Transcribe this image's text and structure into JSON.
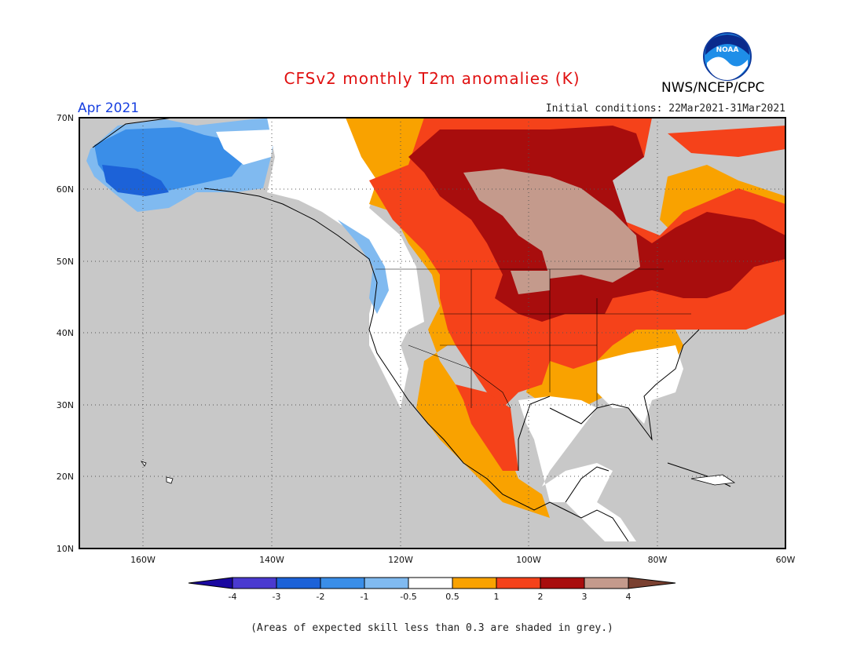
{
  "title": "CFSv2 monthly T2m anomalies (K)",
  "agency": "NWS/NCEP/CPC",
  "logo_text": "NOAA",
  "valid_period": "Apr 2021",
  "initial_conditions": "Initial conditions: 22Mar2021-31Mar2021",
  "footnote": "(Areas of expected skill less than 0.3 are shaded in grey.)",
  "map": {
    "lon_range": [
      -170,
      -60
    ],
    "lat_range": [
      10,
      70
    ],
    "lat_labels": [
      "70N",
      "60N",
      "50N",
      "40N",
      "30N",
      "20N",
      "10N"
    ],
    "lon_labels": [
      "160W",
      "140W",
      "120W",
      "100W",
      "80W",
      "60W"
    ],
    "gridlines": "dotted",
    "low_skill_color": "#c8c8c8"
  },
  "legend": {
    "tick_labels": [
      "-4",
      "-3",
      "-2",
      "-1",
      "-0.5",
      "0.5",
      "1",
      "2",
      "3",
      "4"
    ],
    "bins": [
      {
        "color": "#1a08a0"
      },
      {
        "color": "#4a3ad0"
      },
      {
        "color": "#1c62d8"
      },
      {
        "color": "#3a8ee8"
      },
      {
        "color": "#80baf0"
      },
      {
        "color": "#ffffff"
      },
      {
        "color": "#f9a200"
      },
      {
        "color": "#f5421a"
      },
      {
        "color": "#a80d0d"
      },
      {
        "color": "#c49a8c"
      },
      {
        "color": "#7a4030"
      }
    ]
  }
}
